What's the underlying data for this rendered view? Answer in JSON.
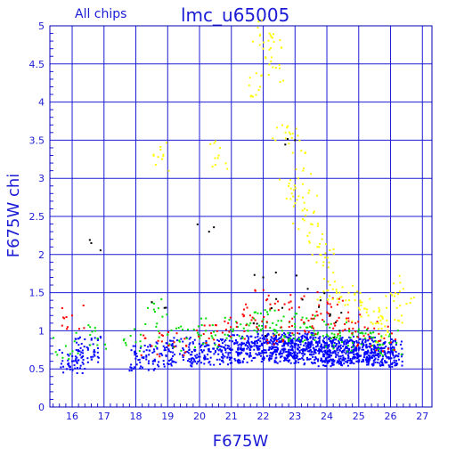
{
  "chart_data": {
    "type": "scatter",
    "corner_label": "All chips",
    "title": "lmc_u65005",
    "xlabel": "F675W",
    "ylabel": "F675W chi",
    "xlim": [
      15.3,
      27.3
    ],
    "ylim": [
      0,
      5
    ],
    "x_ticks": [
      "16",
      "17",
      "18",
      "19",
      "20",
      "21",
      "22",
      "23",
      "24",
      "25",
      "26",
      "27"
    ],
    "y_ticks": [
      "0",
      "0.5",
      "1",
      "1.5",
      "2",
      "2.5",
      "3",
      "3.5",
      "4",
      "4.5",
      "5"
    ],
    "grid": true,
    "point_colors": {
      "blue": "#0000ff",
      "green": "#00dd00",
      "red": "#ff0000",
      "yellow": "#ffff00",
      "black": "#000000"
    },
    "series": [
      {
        "color": "blue",
        "x": [
          16.0,
          16.5,
          18.2,
          18.8,
          19.5,
          20.0,
          20.5,
          21.0,
          21.3,
          21.6,
          21.9,
          22.2,
          22.4,
          22.6,
          22.8,
          23.0,
          23.2,
          23.4,
          23.6,
          23.8,
          24.0,
          24.2,
          24.4,
          24.6,
          24.8,
          25.0,
          25.2,
          25.4,
          25.6,
          25.8,
          26.0
        ],
        "y": [
          0.6,
          0.75,
          0.65,
          0.7,
          0.75,
          0.7,
          0.72,
          0.75,
          0.78,
          0.75,
          0.8,
          0.78,
          0.75,
          0.8,
          0.75,
          0.78,
          0.75,
          0.8,
          0.72,
          0.75,
          0.7,
          0.72,
          0.75,
          0.7,
          0.72,
          0.75,
          0.72,
          0.75,
          0.7,
          0.72,
          0.7
        ]
      },
      {
        "color": "green",
        "x": [
          15.8,
          16.8,
          18.0,
          18.6,
          19.0,
          19.6,
          20.2,
          20.8,
          21.2,
          21.6,
          22.0,
          22.3,
          22.6,
          23.0,
          23.3,
          23.6,
          24.0,
          24.4,
          24.8,
          25.2,
          25.6,
          26.0
        ],
        "y": [
          0.8,
          0.9,
          0.85,
          1.25,
          0.95,
          0.9,
          1.0,
          0.95,
          1.05,
          1.1,
          1.15,
          1.1,
          1.0,
          1.05,
          1.1,
          1.0,
          0.95,
          0.9,
          0.95,
          0.9,
          0.85,
          0.85
        ]
      },
      {
        "color": "red",
        "x": [
          16.0,
          18.5,
          19.2,
          20.3,
          20.9,
          21.4,
          21.8,
          22.1,
          22.5,
          22.9,
          23.3,
          23.7,
          24.1,
          24.5,
          24.9,
          25.3,
          25.8
        ],
        "y": [
          1.2,
          0.8,
          0.85,
          0.9,
          1.1,
          1.2,
          1.05,
          1.4,
          0.95,
          1.3,
          1.0,
          1.2,
          1.35,
          1.0,
          1.1,
          0.95,
          0.9
        ]
      },
      {
        "color": "yellow",
        "x": [
          18.7,
          20.6,
          21.9,
          22.0,
          22.2,
          22.4,
          22.7,
          22.9,
          23.0,
          23.1,
          23.3,
          23.5,
          23.7,
          23.9,
          24.1,
          24.4,
          24.7,
          25.0,
          25.3,
          25.6,
          25.9,
          26.2,
          26.4
        ],
        "y": [
          3.28,
          3.3,
          4.2,
          4.7,
          4.9,
          4.45,
          3.6,
          2.8,
          3.5,
          3.0,
          2.6,
          2.4,
          2.1,
          1.9,
          1.6,
          1.5,
          1.4,
          1.3,
          1.2,
          1.1,
          1.0,
          1.3,
          1.55
        ]
      },
      {
        "color": "black",
        "x": [
          16.6,
          18.9,
          20.3,
          21.7,
          22.0,
          22.6,
          23.0,
          23.4,
          23.8,
          24.1,
          24.4
        ],
        "y": [
          2.15,
          1.3,
          2.3,
          1.1,
          1.7,
          1.3,
          3.5,
          1.55,
          1.4,
          1.2,
          1.0
        ]
      }
    ]
  }
}
